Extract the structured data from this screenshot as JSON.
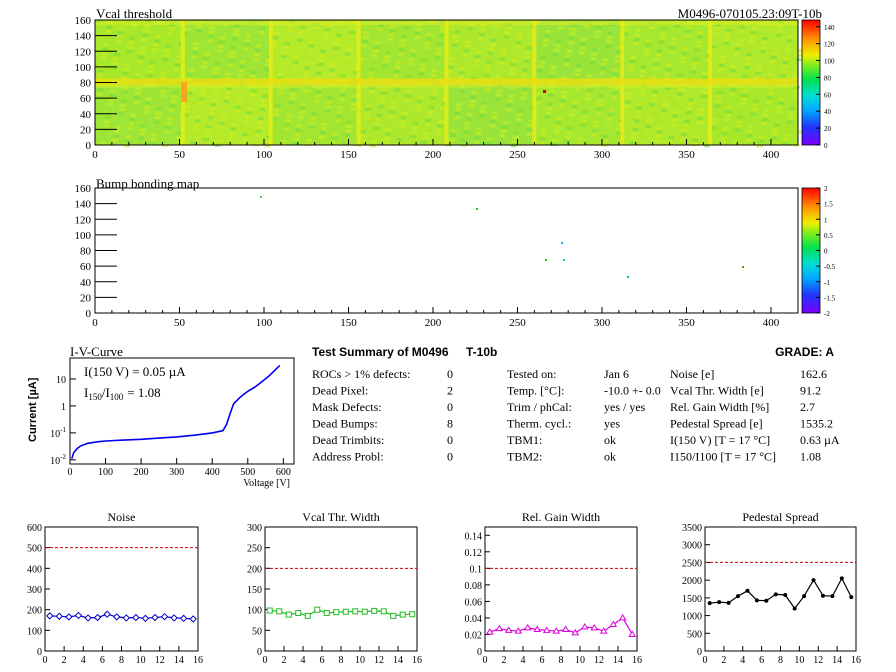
{
  "header": {
    "vcal_title": "Vcal threshold",
    "module_id": "M0496-070105.23:09T-10b"
  },
  "vcal_map": {
    "x_ticks": [
      "0",
      "50",
      "100",
      "150",
      "200",
      "250",
      "300",
      "350",
      "400"
    ],
    "y_ticks": [
      "0",
      "20",
      "40",
      "60",
      "80",
      "100",
      "120",
      "140",
      "160"
    ],
    "palette_ticks": [
      "0",
      "20",
      "40",
      "60",
      "80",
      "100",
      "120",
      "140"
    ]
  },
  "bump_map": {
    "title": "Bump bonding map",
    "x_ticks": [
      "0",
      "50",
      "100",
      "150",
      "200",
      "250",
      "300",
      "350",
      "400"
    ],
    "y_ticks": [
      "0",
      "20",
      "40",
      "60",
      "80",
      "100",
      "120",
      "140",
      "160"
    ],
    "palette_ticks": [
      "-2",
      "-1.5",
      "-1",
      "-0.5",
      "0",
      "0.5",
      "1",
      "1.5",
      "2"
    ]
  },
  "iv_curve": {
    "title": "I-V-Curve",
    "ylabel": "Current [µA]",
    "xlabel": "Voltage [V]",
    "x_ticks": [
      "0",
      "100",
      "200",
      "300",
      "400",
      "500",
      "600"
    ],
    "annot_current": "I(150 V) = 0.05 µA",
    "annot_ratio_label": "I",
    "annot_ratio_sub1": "150",
    "annot_ratio_slash": "/I",
    "annot_ratio_sub2": "100",
    "annot_ratio_value": "= 1.08",
    "y_ticks": [
      {
        "base": "10",
        "exp": "-2",
        "v": 0.01
      },
      {
        "base": "10",
        "exp": "-1",
        "v": 0.1
      },
      {
        "base": "1",
        "exp": "",
        "v": 1
      },
      {
        "base": "10",
        "exp": "",
        "v": 10
      }
    ],
    "points": [
      [
        5,
        0.011
      ],
      [
        10,
        0.018
      ],
      [
        20,
        0.026
      ],
      [
        30,
        0.033
      ],
      [
        50,
        0.041
      ],
      [
        80,
        0.047
      ],
      [
        100,
        0.05
      ],
      [
        150,
        0.054
      ],
      [
        200,
        0.058
      ],
      [
        250,
        0.064
      ],
      [
        300,
        0.071
      ],
      [
        350,
        0.082
      ],
      [
        400,
        0.1
      ],
      [
        430,
        0.12
      ],
      [
        440,
        0.2
      ],
      [
        450,
        0.5
      ],
      [
        460,
        1.2
      ],
      [
        480,
        2.2
      ],
      [
        500,
        3.5
      ],
      [
        520,
        5
      ],
      [
        540,
        8
      ],
      [
        560,
        13
      ],
      [
        590,
        32
      ]
    ]
  },
  "summary": {
    "title": "Test Summary of M0496",
    "type": "T-10b",
    "grade": "GRADE:  A",
    "left": [
      {
        "label": "ROCs > 1% defects:",
        "value": "0"
      },
      {
        "label": "Dead Pixel:",
        "value": "2"
      },
      {
        "label": "Mask Defects:",
        "value": "0"
      },
      {
        "label": "Dead Bumps:",
        "value": "8"
      },
      {
        "label": "Dead Trimbits:",
        "value": "0"
      },
      {
        "label": "Address Probl:",
        "value": "0"
      }
    ],
    "mid": [
      {
        "label": "Tested on:",
        "value": "Jan 6"
      },
      {
        "label": "Temp. [°C]:",
        "value": "-10.0 +- 0.0"
      },
      {
        "label": "Trim / phCal:",
        "value": "yes / yes"
      },
      {
        "label": "Therm. cycl.:",
        "value": "yes"
      },
      {
        "label": "TBM1:",
        "value": "ok"
      },
      {
        "label": "TBM2:",
        "value": "ok"
      }
    ],
    "right": [
      {
        "label": "Noise [e]",
        "value": "162.6"
      },
      {
        "label": "Vcal Thr. Width [e]",
        "value": "91.2"
      },
      {
        "label": "Rel. Gain Width [%]",
        "value": "2.7"
      },
      {
        "label": "Pedestal Spread [e]",
        "value": "1535.2"
      },
      {
        "label": "I(150 V) [T = 17 °C]",
        "value": "0.63 µA"
      },
      {
        "label": "I150/I100  [T = 17 °C]",
        "value": "1.08"
      }
    ]
  },
  "chart_data": [
    {
      "type": "line",
      "title": "Noise",
      "x": [
        0,
        1,
        2,
        3,
        4,
        5,
        6,
        7,
        8,
        9,
        10,
        11,
        12,
        13,
        14,
        15
      ],
      "values": [
        170,
        168,
        165,
        172,
        160,
        162,
        178,
        165,
        160,
        162,
        158,
        162,
        166,
        160,
        158,
        155
      ],
      "ylim": [
        0,
        600
      ],
      "y_ticks": [
        "0",
        "100",
        "200",
        "300",
        "400",
        "500",
        "600"
      ],
      "threshold": 500,
      "x_ticks": [
        "0",
        "2",
        "4",
        "6",
        "8",
        "10",
        "12",
        "14",
        "16"
      ],
      "color": "#0000cc",
      "marker": "diamond"
    },
    {
      "type": "line",
      "title": "Vcal Thr. Width",
      "x": [
        0,
        1,
        2,
        3,
        4,
        5,
        6,
        7,
        8,
        9,
        10,
        11,
        12,
        13,
        14,
        15
      ],
      "values": [
        98,
        96,
        88,
        92,
        85,
        100,
        92,
        94,
        95,
        96,
        95,
        97,
        96,
        85,
        88,
        89
      ],
      "ylim": [
        0,
        300
      ],
      "y_ticks": [
        "0",
        "50",
        "100",
        "150",
        "200",
        "250",
        "300"
      ],
      "threshold": 200,
      "x_ticks": [
        "0",
        "2",
        "4",
        "6",
        "8",
        "10",
        "12",
        "14",
        "16"
      ],
      "color": "#22bb22",
      "marker": "square"
    },
    {
      "type": "line",
      "title": "Rel. Gain Width",
      "x": [
        0,
        1,
        2,
        3,
        4,
        5,
        6,
        7,
        8,
        9,
        10,
        11,
        12,
        13,
        14,
        15
      ],
      "values": [
        0.023,
        0.027,
        0.025,
        0.024,
        0.028,
        0.026,
        0.025,
        0.024,
        0.026,
        0.022,
        0.029,
        0.028,
        0.024,
        0.032,
        0.04,
        0.02
      ],
      "ylim": [
        0,
        0.15
      ],
      "y_ticks": [
        "0",
        "0.02",
        "0.04",
        "0.06",
        "0.08",
        "0.1",
        "0.12",
        "0.14"
      ],
      "threshold": 0.1,
      "x_ticks": [
        "0",
        "2",
        "4",
        "6",
        "8",
        "10",
        "12",
        "14",
        "16"
      ],
      "color": "#dd00dd",
      "marker": "triangle"
    },
    {
      "type": "line",
      "title": "Pedestal Spread",
      "x": [
        0,
        1,
        2,
        3,
        4,
        5,
        6,
        7,
        8,
        9,
        10,
        11,
        12,
        13,
        14,
        15
      ],
      "values": [
        1350,
        1380,
        1360,
        1550,
        1700,
        1430,
        1420,
        1600,
        1580,
        1200,
        1550,
        2000,
        1560,
        1550,
        2050,
        1520
      ],
      "ylim": [
        0,
        3500
      ],
      "y_ticks": [
        "0",
        "500",
        "1000",
        "1500",
        "2000",
        "2500",
        "3000",
        "3500"
      ],
      "threshold": 2500,
      "x_ticks": [
        "0",
        "2",
        "4",
        "6",
        "8",
        "10",
        "12",
        "14",
        "16"
      ],
      "color": "#000000",
      "marker": "dot"
    }
  ]
}
